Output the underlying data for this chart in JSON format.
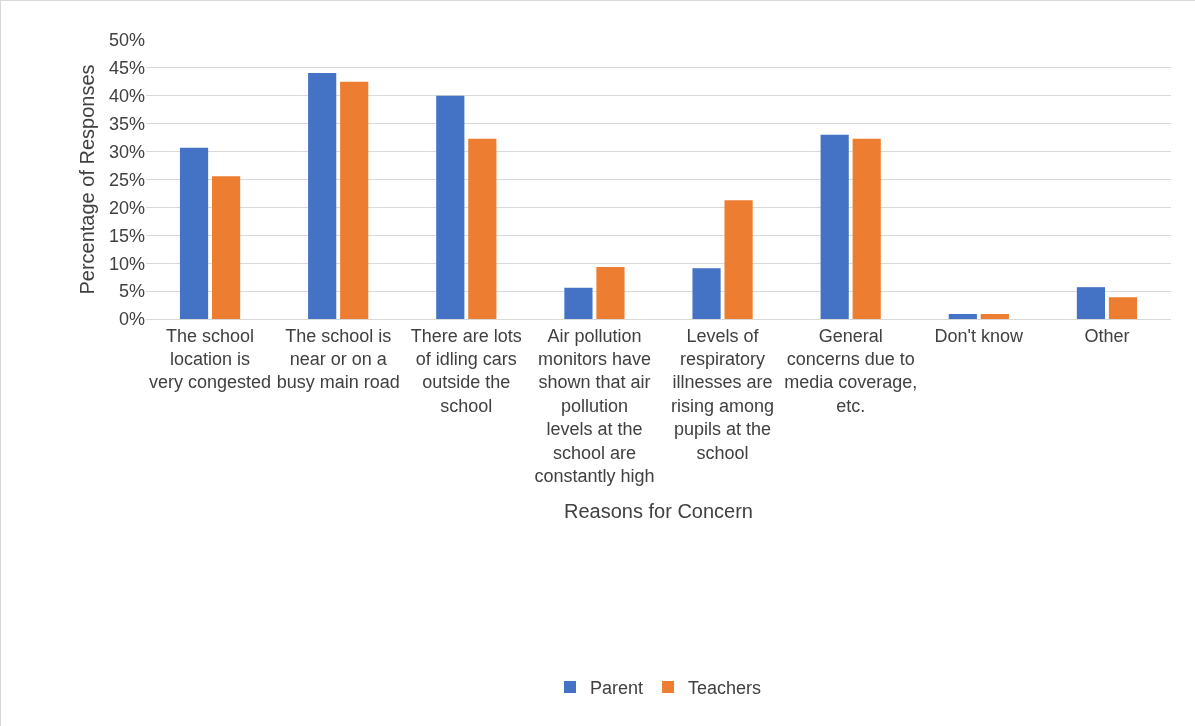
{
  "chart_data": {
    "type": "bar",
    "xlabel": "Reasons for Concern",
    "ylabel": "Percentage of Responses",
    "categories": [
      "The school location is very congested",
      "The school is near or on a busy main road",
      "There are lots of idling cars outside the school",
      "Air pollution monitors have shown that air pollution levels at the school are constantly high",
      "Levels of respiratory illnesses are rising among pupils at the school",
      "General concerns due to media coverage, etc.",
      "Don't know",
      "Other"
    ],
    "series": [
      {
        "name": "Parent",
        "color": "#4472c4",
        "values": [
          30.7,
          44.1,
          40.0,
          5.6,
          9.1,
          33.0,
          0.9,
          5.7
        ]
      },
      {
        "name": "Teachers",
        "color": "#ed7d31",
        "values": [
          25.6,
          42.5,
          32.3,
          9.3,
          21.3,
          32.3,
          0.9,
          3.9
        ]
      }
    ],
    "ylim": [
      0,
      50
    ],
    "yticks": [
      {
        "value": 0,
        "label": "0%"
      },
      {
        "value": 5,
        "label": "5%"
      },
      {
        "value": 10,
        "label": "10%"
      },
      {
        "value": 15,
        "label": "15%"
      },
      {
        "value": 20,
        "label": "20%"
      },
      {
        "value": 25,
        "label": "25%"
      },
      {
        "value": 30,
        "label": "30%"
      },
      {
        "value": 35,
        "label": "35%"
      },
      {
        "value": 40,
        "label": "40%"
      },
      {
        "value": 45,
        "label": "45%"
      },
      {
        "value": 50,
        "label": "50%"
      }
    ],
    "grid": "y",
    "legend": "bottom"
  }
}
